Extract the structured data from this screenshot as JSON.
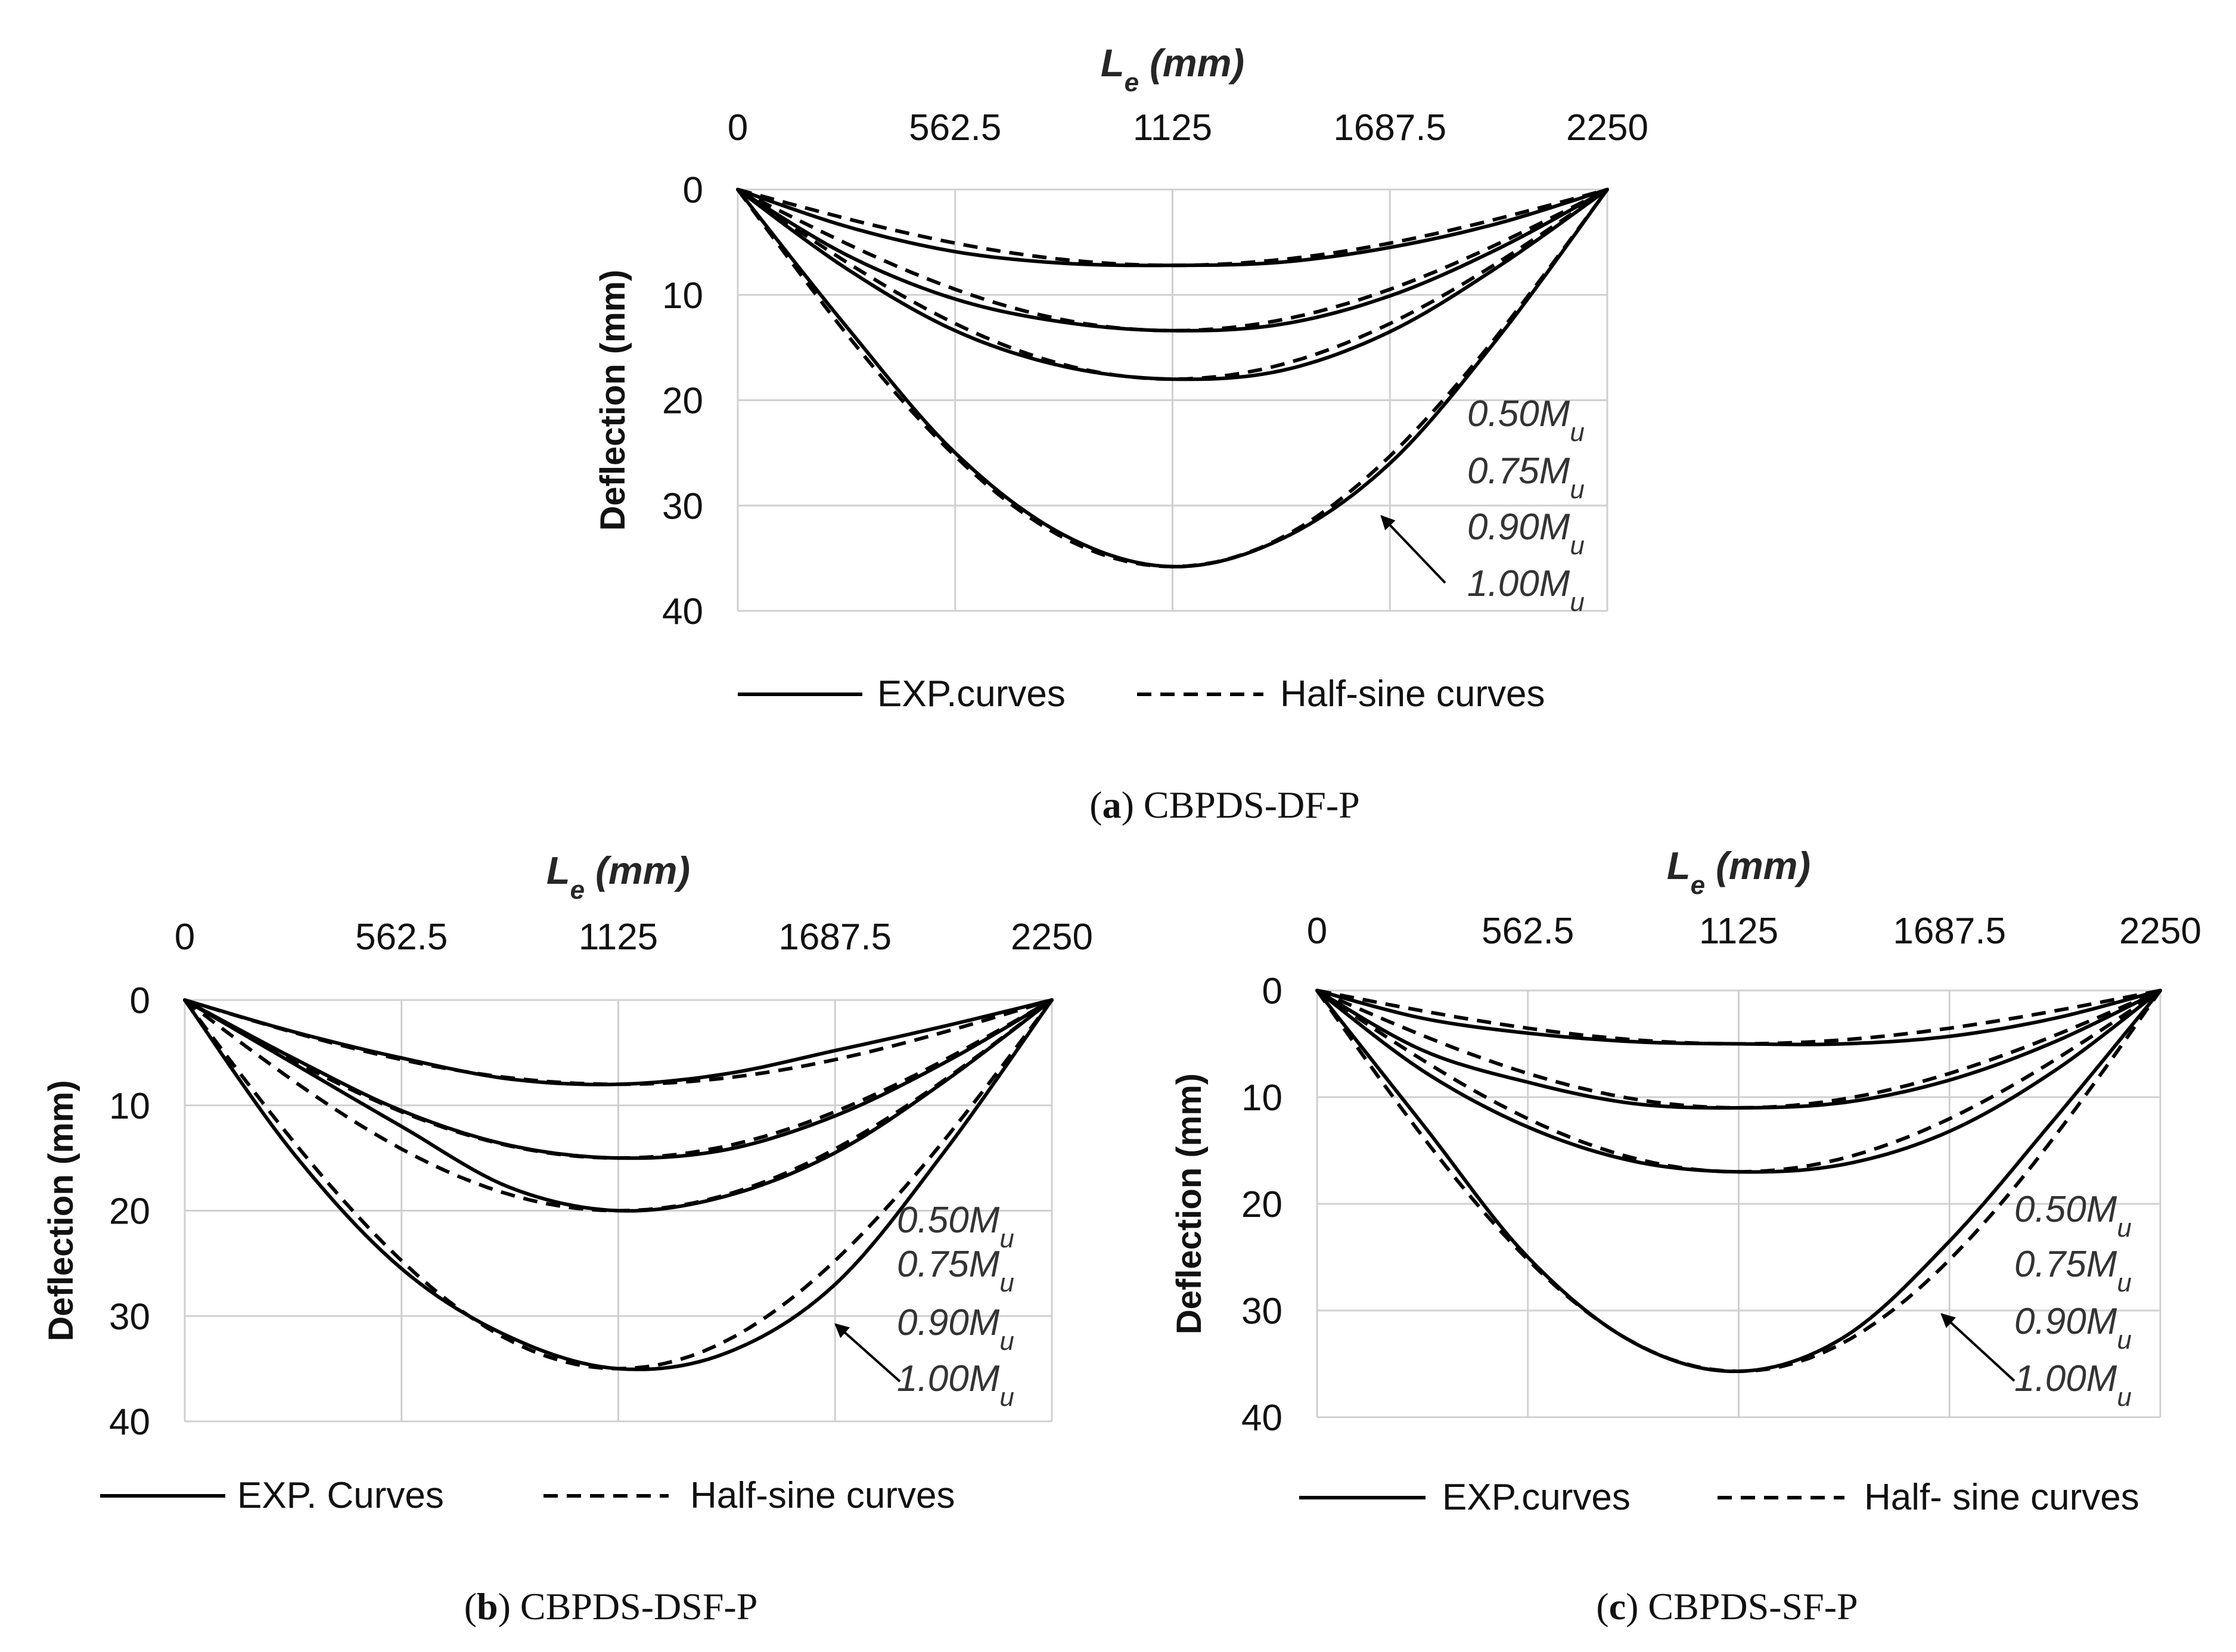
{
  "chart_data": [
    {
      "type": "line",
      "id": "a",
      "title": "L",
      "title_sub": "e",
      "title_unit": " (mm)",
      "xlabel": "Le (mm)",
      "ylabel": "Deflection (mm)",
      "x_ticks": [
        "0",
        "562.5",
        "1125",
        "1687.5",
        "2250"
      ],
      "y_ticks": [
        "0",
        "10",
        "20",
        "30",
        "40"
      ],
      "xlim": [
        0,
        2250
      ],
      "ylim": [
        0,
        40
      ],
      "x_axis_position": "top",
      "y_axis_inverted": true,
      "grid": true,
      "series": [
        {
          "name": "EXP.curves 0.50Mu",
          "style": "solid",
          "x": [
            0,
            281,
            562.5,
            844,
            1125,
            1406,
            1687.5,
            1969,
            2250
          ],
          "values": [
            0,
            3.5,
            5.9,
            7.0,
            7.2,
            6.9,
            5.5,
            3.2,
            0
          ]
        },
        {
          "name": "Half-sine curves 0.50Mu",
          "style": "dashed",
          "amplitude": 7.2
        },
        {
          "name": "EXP.curves 0.75Mu",
          "style": "solid",
          "x": [
            0,
            281,
            562.5,
            844,
            1125,
            1406,
            1687.5,
            1969,
            2250
          ],
          "values": [
            0,
            6.2,
            10.4,
            12.6,
            13.4,
            12.8,
            10.1,
            5.6,
            0
          ]
        },
        {
          "name": "Half-sine curves 0.75Mu",
          "style": "dashed",
          "amplitude": 13.4
        },
        {
          "name": "EXP.curves 0.90Mu",
          "style": "solid",
          "x": [
            0,
            281,
            562.5,
            844,
            1125,
            1406,
            1687.5,
            1969,
            2250
          ],
          "values": [
            0,
            7.5,
            13.4,
            16.8,
            18.0,
            17.2,
            13.5,
            7.3,
            0
          ]
        },
        {
          "name": "Half-sine curves 0.90Mu",
          "style": "dashed",
          "amplitude": 18.0
        },
        {
          "name": "EXP.curves 1.00Mu",
          "style": "solid",
          "x": [
            0,
            281,
            562.5,
            844,
            1125,
            1406,
            1687.5,
            1969,
            2250
          ],
          "values": [
            0,
            13.0,
            25.0,
            32.8,
            35.8,
            33.2,
            26.0,
            14.0,
            0
          ]
        },
        {
          "name": "Half-sine curves 1.00Mu",
          "style": "dashed",
          "amplitude": 35.8
        }
      ],
      "annotations": [
        "0.50M",
        "0.75M",
        "0.90M",
        "1.00M"
      ],
      "annotation_sub": "u",
      "legend": {
        "solid": "EXP.curves",
        "dashed": "Half-sine curves",
        "placement": "bottom"
      },
      "caption_label": "(a)",
      "caption_text": " CBPDS-DF-P"
    },
    {
      "type": "line",
      "id": "b",
      "title": "L",
      "title_sub": "e",
      "title_unit": " (mm)",
      "xlabel": "Le (mm)",
      "ylabel": "Deflection (mm)",
      "x_ticks": [
        "0",
        "562.5",
        "1125",
        "1687.5",
        "2250"
      ],
      "y_ticks": [
        "0",
        "10",
        "20",
        "30",
        "40"
      ],
      "xlim": [
        0,
        2250
      ],
      "ylim": [
        0,
        40
      ],
      "x_axis_position": "top",
      "y_axis_inverted": true,
      "grid": true,
      "series": [
        {
          "name": "EXP. Curves 0.50Mu",
          "style": "solid",
          "x": [
            0,
            281,
            562.5,
            844,
            1125,
            1406,
            1687.5,
            1969,
            2250
          ],
          "values": [
            0,
            3.0,
            5.5,
            7.5,
            8.0,
            7.0,
            4.8,
            2.5,
            0
          ]
        },
        {
          "name": "Half-sine curves 0.50Mu",
          "style": "dashed",
          "amplitude": 8.0
        },
        {
          "name": "EXP. Curves 0.75Mu",
          "style": "solid",
          "x": [
            0,
            281,
            562.5,
            844,
            1125,
            1406,
            1687.5,
            1969,
            2250
          ],
          "values": [
            0,
            5.5,
            10.5,
            13.8,
            15.0,
            14.2,
            11.0,
            6.0,
            0
          ]
        },
        {
          "name": "Half-sine curves 0.75Mu",
          "style": "dashed",
          "amplitude": 15.0
        },
        {
          "name": "EXP. Curves 0.90Mu",
          "style": "solid",
          "x": [
            0,
            281,
            562.5,
            844,
            1125,
            1406,
            1687.5,
            1969,
            2250
          ],
          "values": [
            0,
            6.0,
            12.0,
            17.8,
            20.0,
            18.6,
            14.5,
            7.8,
            0
          ]
        },
        {
          "name": "Half-sine curves 0.90Mu",
          "style": "dashed",
          "amplitude": 20.0
        },
        {
          "name": "EXP. Curves 1.00Mu",
          "style": "solid",
          "x": [
            0,
            281,
            562.5,
            844,
            1125,
            1406,
            1687.5,
            1969,
            2250
          ],
          "values": [
            0,
            14.5,
            25.5,
            32.0,
            35.0,
            33.5,
            27.0,
            14.5,
            0
          ]
        },
        {
          "name": "Half-sine curves 1.00Mu",
          "style": "dashed",
          "amplitude": 35.0
        }
      ],
      "annotations": [
        "0.50M",
        "0.75M",
        "0.90M",
        "1.00M"
      ],
      "annotation_sub": "u",
      "legend": {
        "solid": "EXP. Curves",
        "dashed": "Half-sine curves",
        "placement": "bottom"
      },
      "caption_label": "(b)",
      "caption_text": " CBPDS-DSF-P"
    },
    {
      "type": "line",
      "id": "c",
      "title": "L",
      "title_sub": "e",
      "title_unit": " (mm)",
      "xlabel": "Le (mm)",
      "ylabel": "Deflection (mm)",
      "x_ticks": [
        "0",
        "562.5",
        "1125",
        "1687.5",
        "2250"
      ],
      "y_ticks": [
        "0",
        "10",
        "20",
        "30",
        "40"
      ],
      "xlim": [
        0,
        2250
      ],
      "ylim": [
        0,
        40
      ],
      "x_axis_position": "top",
      "y_axis_inverted": true,
      "grid": true,
      "series": [
        {
          "name": "EXP.curves 0.50Mu",
          "style": "solid",
          "x": [
            0,
            281,
            562.5,
            844,
            1125,
            1406,
            1687.5,
            1969,
            2250
          ],
          "values": [
            0,
            2.6,
            4.0,
            4.8,
            5.0,
            5.0,
            4.3,
            2.6,
            0
          ]
        },
        {
          "name": "Half-sine curves 0.50Mu",
          "style": "dashed",
          "amplitude": 5.0
        },
        {
          "name": "EXP.curves 0.75Mu",
          "style": "solid",
          "x": [
            0,
            281,
            562.5,
            844,
            1125,
            1406,
            1687.5,
            1969,
            2250
          ],
          "values": [
            0,
            5.6,
            8.6,
            10.6,
            11.0,
            10.5,
            8.4,
            4.8,
            0
          ]
        },
        {
          "name": "Half-sine curves 0.75Mu",
          "style": "dashed",
          "amplitude": 11.0
        },
        {
          "name": "EXP.curves 0.90Mu",
          "style": "solid",
          "x": [
            0,
            281,
            562.5,
            844,
            1125,
            1406,
            1687.5,
            1969,
            2250
          ],
          "values": [
            0,
            7.5,
            12.8,
            16.0,
            17.0,
            16.3,
            13.2,
            7.5,
            0
          ]
        },
        {
          "name": "Half-sine curves 0.90Mu",
          "style": "dashed",
          "amplitude": 17.0
        },
        {
          "name": "EXP.curves 1.00Mu",
          "style": "solid",
          "x": [
            0,
            281,
            562.5,
            844,
            1125,
            1406,
            1687.5,
            1969,
            2250
          ],
          "values": [
            0,
            12.5,
            25.0,
            33.0,
            35.7,
            32.5,
            23.5,
            12.0,
            0
          ]
        },
        {
          "name": "Half-sine curves 1.00Mu",
          "style": "dashed",
          "amplitude": 35.7
        }
      ],
      "annotations": [
        "0.50M",
        "0.75M",
        "0.90M",
        "1.00M"
      ],
      "annotation_sub": "u",
      "legend": {
        "solid": "EXP.curves",
        "dashed": "Half- sine curves",
        "placement": "bottom"
      },
      "caption_label": "(c)",
      "caption_text": " CBPDS-SF-P"
    }
  ]
}
